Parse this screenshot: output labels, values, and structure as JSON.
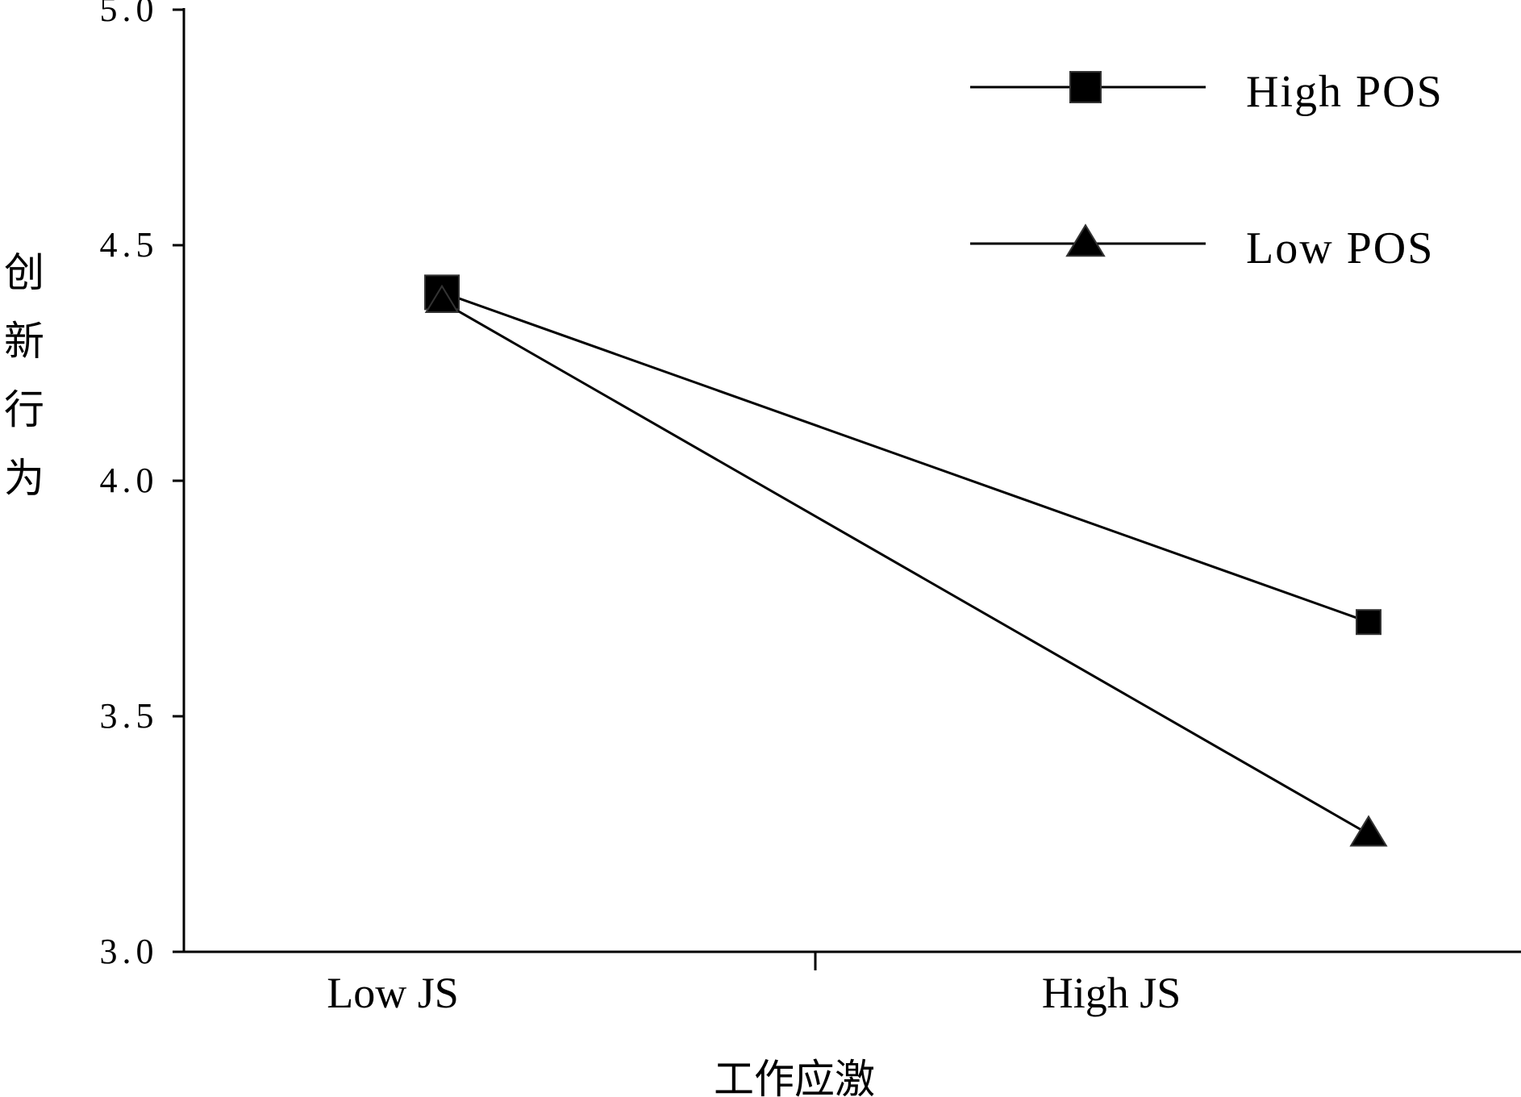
{
  "chart_data": {
    "type": "line",
    "title": "",
    "xlabel": "工作应激",
    "ylabel": "创新行为",
    "categories": [
      "Low JS",
      "High JS"
    ],
    "ylim": [
      3.0,
      5.0
    ],
    "yticks": [
      "3.0",
      "3.5",
      "4.0",
      "4.5",
      "5.0"
    ],
    "grid": false,
    "legend_position": "top-right",
    "series": [
      {
        "name": "High POS",
        "marker": "square",
        "values": [
          4.4,
          3.7
        ],
        "color": "#000000"
      },
      {
        "name": "Low POS",
        "marker": "triangle",
        "values": [
          4.38,
          3.25
        ],
        "color": "#000000"
      }
    ]
  }
}
